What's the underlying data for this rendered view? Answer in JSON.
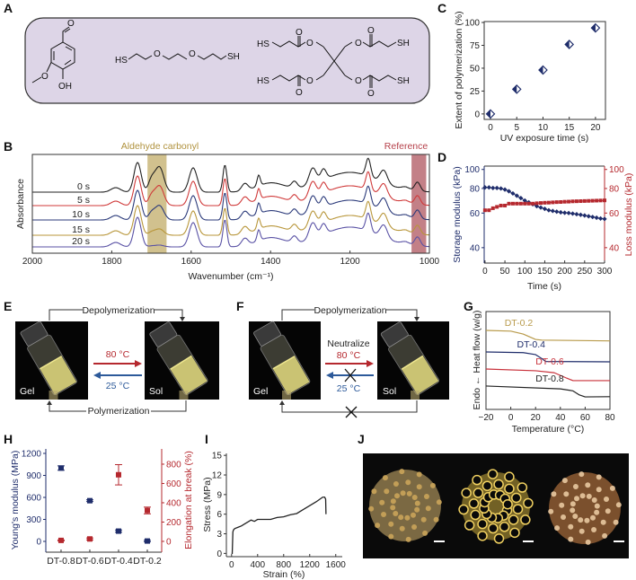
{
  "panels": {
    "A": "A",
    "B": "B",
    "C": "C",
    "D": "D",
    "E": "E",
    "F": "F",
    "G": "G",
    "H": "H",
    "I": "I",
    "J": "J"
  },
  "panel_A": {
    "box_color": "#ddd5e7",
    "atoms": [
      "O",
      "O",
      "OH",
      "HS",
      "O",
      "O",
      "SH",
      "HS",
      "HS",
      "O",
      "O",
      "O",
      "O",
      "O",
      "O",
      "O",
      "O",
      "SH",
      "SH"
    ]
  },
  "panel_E": {
    "top_label": "Depolymerization",
    "bottom_label": "Polymerization",
    "forward": "80 °C",
    "reverse": "25 °C",
    "left_photo": "Gel",
    "right_photo": "Sol"
  },
  "panel_F": {
    "top_label": "Depolymerization",
    "condition": "Neutralize",
    "forward": "80 °C",
    "reverse": "25 °C",
    "left_photo": "Gel",
    "right_photo": "Sol",
    "blocked_icon": "cross-icon"
  },
  "colors": {
    "navy": "#1f2d6b",
    "red": "#b5282e",
    "gold": "#b89a4a",
    "black": "#222222",
    "purple": "#5a52a5"
  },
  "chart_data": [
    {
      "panel": "C",
      "type": "scatter",
      "xlabel": "UV exposure time (s)",
      "ylabel": "Extent of polymerization (%)",
      "x": [
        0,
        5,
        10,
        15,
        20
      ],
      "y": [
        0,
        27,
        48,
        76,
        94
      ],
      "xlim": [
        -1.2,
        21.9
      ],
      "ylim": [
        -6,
        101
      ],
      "xticks": [
        0,
        5,
        10,
        15,
        20
      ],
      "yticks": [
        0,
        25,
        50,
        75,
        100
      ],
      "marker": "half-filled diamond",
      "color": "#1f2d6b",
      "grid": false
    },
    {
      "panel": "B",
      "type": "line",
      "xlabel": "Wavenumber (cm⁻¹)",
      "ylabel": "Absorbance",
      "xlim": [
        2000,
        1000
      ],
      "ylim": [
        0,
        1.1
      ],
      "xticks": [
        2000,
        1800,
        1600,
        1400,
        1200,
        1000
      ],
      "bands": [
        {
          "label": "Aldehyde carbonyl",
          "range": [
            1710,
            1662
          ],
          "color": "#c9b67a"
        },
        {
          "label": "Reference",
          "range": [
            1045,
            1008
          ],
          "color": "#b86a72"
        }
      ],
      "peaks": [
        [
          1790,
          0.05,
          12
        ],
        [
          1735,
          0.33,
          9
        ],
        [
          1595,
          0.27,
          10
        ],
        [
          1515,
          0.3,
          5
        ],
        [
          1465,
          0.08,
          8
        ],
        [
          1430,
          0.12,
          4
        ],
        [
          1400,
          0.1,
          35
        ],
        [
          1340,
          0.07,
          7
        ],
        [
          1200,
          0.22,
          70
        ],
        [
          1294,
          0.18,
          9
        ],
        [
          1267,
          0.12,
          7
        ],
        [
          1154,
          0.2,
          6
        ],
        [
          1115,
          0.14,
          9
        ],
        [
          1060,
          0.03,
          10
        ],
        [
          1030,
          0.1,
          7
        ]
      ],
      "series": [
        {
          "name": "0 s",
          "color": "#222222",
          "offset": 0.68,
          "aldehyde": 0.28
        },
        {
          "name": "5 s",
          "color": "#d03a3a",
          "offset": 0.53,
          "aldehyde": 0.22
        },
        {
          "name": "10 s",
          "color": "#2b3a7a",
          "offset": 0.37,
          "aldehyde": 0.16
        },
        {
          "name": "15 s",
          "color": "#b8963a",
          "offset": 0.2,
          "aldehyde": 0.07
        },
        {
          "name": "20 s",
          "color": "#5a52a5",
          "offset": 0.07,
          "aldehyde": 0.02
        }
      ],
      "grid": false
    },
    {
      "panel": "D",
      "type": "line",
      "xlabel": "Time (s)",
      "ylabel_left": "Storage modulus (kPa)",
      "ylabel_right": "Loss modulus (kPa)",
      "xlim": [
        -2,
        300
      ],
      "ylim": [
        33.4,
        104
      ],
      "yscale": "log",
      "xticks": [
        0,
        50,
        100,
        150,
        200,
        250,
        300
      ],
      "yticks": [
        40,
        60,
        80,
        100
      ],
      "x": [
        0,
        10,
        20,
        30,
        40,
        50,
        60,
        70,
        80,
        90,
        100,
        110,
        120,
        130,
        140,
        150,
        160,
        170,
        180,
        190,
        200,
        210,
        220,
        230,
        240,
        250,
        260,
        270,
        280,
        290,
        300
      ],
      "series": [
        {
          "axis": "left",
          "color": "#1f2d6b",
          "marker": "diamond",
          "values": [
            81,
            81,
            80.5,
            80.5,
            80,
            79,
            77.5,
            75.5,
            73.5,
            71.5,
            69.5,
            68,
            66.5,
            65,
            64,
            63,
            62,
            61.5,
            61,
            60.5,
            60.2,
            60,
            59.6,
            59.2,
            58.8,
            58.3,
            57.8,
            57.3,
            56.8,
            56.3,
            56
          ]
        },
        {
          "axis": "right",
          "color": "#b5282e",
          "marker": "cross",
          "values": [
            62,
            62,
            63.5,
            64.5,
            65.5,
            65.5,
            67,
            67,
            67,
            67,
            67,
            67,
            67,
            67.3,
            67.5,
            67.7,
            67.8,
            68,
            68.2,
            68.3,
            68.5,
            68.6,
            68.8,
            68.9,
            69,
            69.1,
            69.2,
            69.3,
            69.4,
            69.5,
            69.6
          ]
        }
      ],
      "grid": false
    },
    {
      "panel": "G",
      "type": "line",
      "xlabel": "Temperature (°C)",
      "ylabel": "Endo ← Heat flow (w/g)",
      "xlim": [
        -20,
        80
      ],
      "ylim": [
        0,
        10
      ],
      "xticks": [
        -20,
        0,
        20,
        40,
        60,
        80
      ],
      "series": [
        {
          "name": "DT-0.2",
          "color": "#b89a4a",
          "points": [
            [
              -20,
              8.07
            ],
            [
              0,
              8.0
            ],
            [
              10,
              7.7
            ],
            [
              20,
              7.15
            ],
            [
              25,
              7.08
            ],
            [
              80,
              7.0
            ]
          ]
        },
        {
          "name": "DT-0.4",
          "color": "#1f2d6b",
          "points": [
            [
              -20,
              5.87
            ],
            [
              10,
              5.8
            ],
            [
              20,
              5.6
            ],
            [
              25,
              5.2
            ],
            [
              28,
              4.9
            ],
            [
              80,
              4.86
            ]
          ]
        },
        {
          "name": "DT-0.6",
          "color": "#c8303a",
          "points": [
            [
              -20,
              4.13
            ],
            [
              20,
              3.95
            ],
            [
              35,
              3.75
            ],
            [
              45,
              3.2
            ],
            [
              50,
              2.95
            ],
            [
              80,
              2.94
            ]
          ]
        },
        {
          "name": "DT-0.8",
          "color": "#222222",
          "points": [
            [
              -20,
              2.39
            ],
            [
              40,
              2.1
            ],
            [
              50,
              1.9
            ],
            [
              55,
              1.5
            ],
            [
              60,
              1.28
            ],
            [
              80,
              1.3
            ]
          ]
        }
      ],
      "grid": false
    },
    {
      "panel": "H",
      "type": "scatter",
      "categories": [
        "DT-0.8",
        "DT-0.6",
        "DT-0.4",
        "DT-0.2"
      ],
      "ylabel_left": "Young's modulus (MPa)",
      "ylabel_right": "Elongation at break (%)",
      "ylim_left": [
        -147,
        1261
      ],
      "ylim_right": [
        -112,
        958
      ],
      "yticks_left": [
        0,
        300,
        600,
        900,
        1200
      ],
      "yticks_right": [
        0,
        200,
        400,
        600,
        800
      ],
      "series": [
        {
          "axis": "left",
          "color": "#1f2d6b",
          "values": [
            1000,
            555,
            140,
            5
          ],
          "errors": [
            30,
            12,
            15,
            10
          ]
        },
        {
          "axis": "right",
          "color": "#b5282e",
          "values": [
            10,
            25,
            690,
            320
          ],
          "errors": [
            5,
            10,
            105,
            35
          ]
        }
      ],
      "grid": false
    },
    {
      "panel": "I",
      "type": "line",
      "xlabel": "Strain (%)",
      "ylabel": "Stress (MPa)",
      "xlim": [
        -80,
        1700
      ],
      "ylim": [
        -0.5,
        15.3
      ],
      "xticks": [
        0,
        400,
        800,
        1200,
        1600
      ],
      "yticks": [
        0,
        3,
        6,
        9,
        12,
        15
      ],
      "x": [
        0,
        10,
        20,
        30,
        50,
        100,
        150,
        200,
        300,
        350,
        400,
        500,
        600,
        700,
        800,
        900,
        1000,
        1100,
        1200,
        1300,
        1400,
        1430,
        1445,
        1450
      ],
      "y": [
        0,
        0,
        3.3,
        3.6,
        3.8,
        4.0,
        4.2,
        4.5,
        5.1,
        4.9,
        5.2,
        5.2,
        5.2,
        5.5,
        5.6,
        5.9,
        6.1,
        6.7,
        7.3,
        7.9,
        8.6,
        8.6,
        8.3,
        6.0
      ],
      "color": "#222222",
      "grid": false
    }
  ]
}
